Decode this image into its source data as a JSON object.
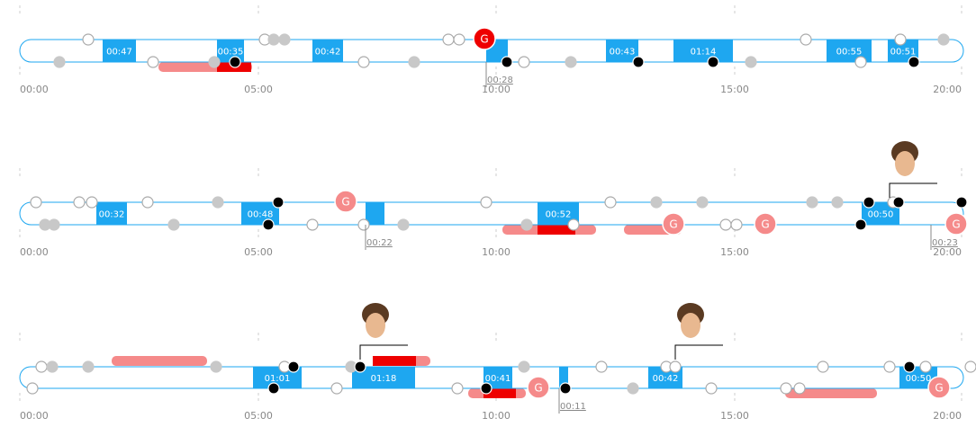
{
  "rows": [
    {
      "axis_labels": [
        "00:00",
        "05:00",
        "10:00",
        "15:00",
        "20:00"
      ],
      "boxes": [
        "00:47",
        "00:35",
        "00:42",
        "00:43",
        "01:14",
        "00:55",
        "00:51"
      ],
      "notes": [
        "00:28"
      ],
      "goals": [
        "G"
      ]
    },
    {
      "axis_labels": [
        "00:00",
        "05:00",
        "10:00",
        "15:00",
        "20:00"
      ],
      "boxes": [
        "00:32",
        "00:48",
        "00:52",
        "00:50"
      ],
      "notes": [
        "00:22",
        "00:23"
      ],
      "goals": [
        "G",
        "G",
        "G",
        "G"
      ]
    },
    {
      "axis_labels": [
        "00:00",
        "05:00",
        "10:00",
        "15:00",
        "20:00"
      ],
      "boxes": [
        "01:01",
        "01:18",
        "00:41",
        "00:42",
        "00:50"
      ],
      "notes": [
        "00:11"
      ],
      "goals": [
        "G",
        "G"
      ]
    }
  ]
}
